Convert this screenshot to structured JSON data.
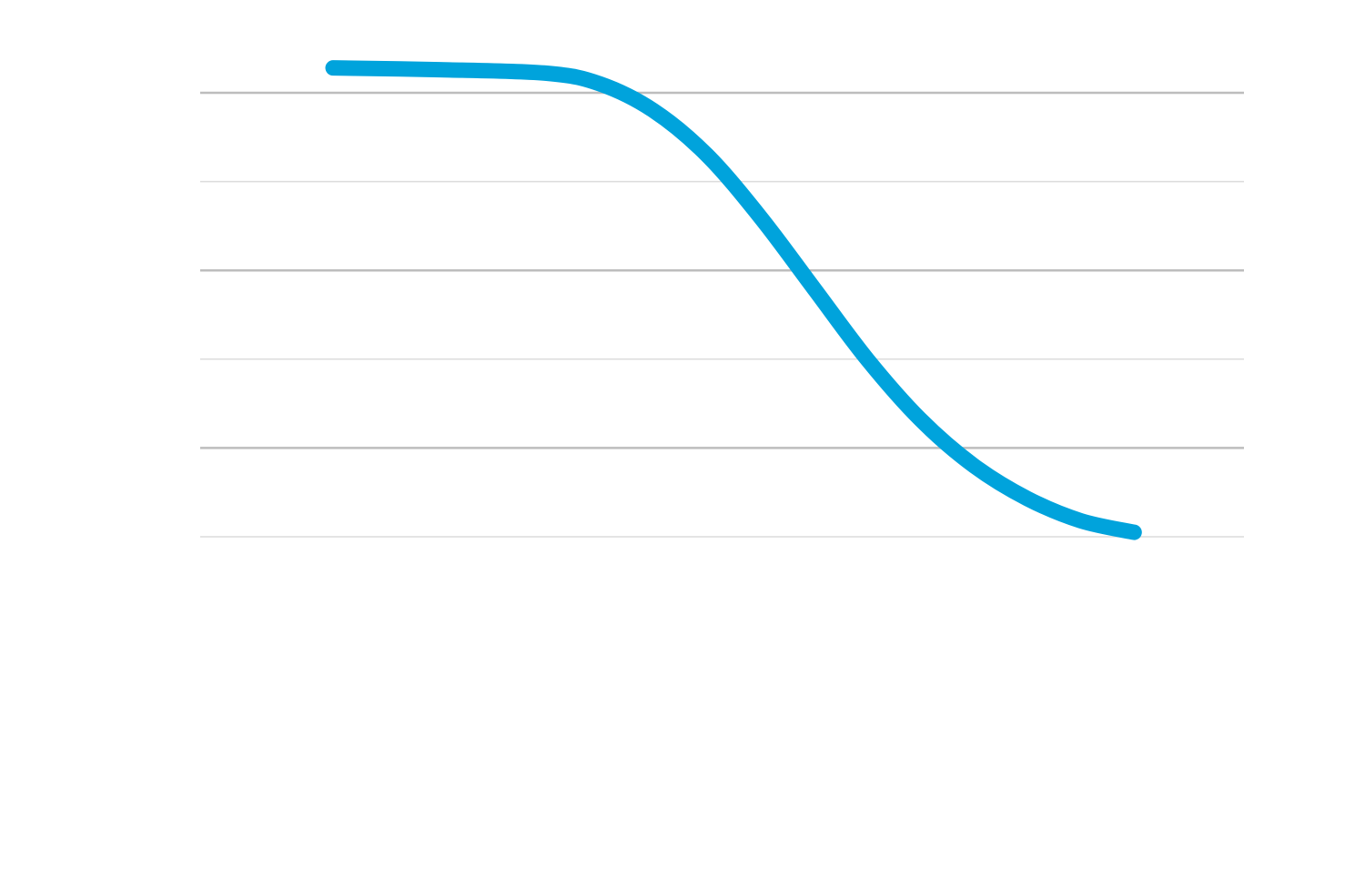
{
  "chart_data": {
    "type": "line",
    "title": "",
    "xlabel": "",
    "ylabel": "",
    "grid": true,
    "legend": "none",
    "ylim": [
      0,
      5
    ],
    "xlim": [
      0,
      8
    ],
    "gridlines": [
      0,
      1,
      2,
      3,
      4,
      5
    ],
    "colors": {
      "line": "#00a3dc",
      "grid_major": "#bdbdbd",
      "grid_minor": "#dcdcdc"
    },
    "series": [
      {
        "points": [
          {
            "x": 0.0,
            "y": 5.28
          },
          {
            "x": 1.0,
            "y": 5.26
          },
          {
            "x": 2.0,
            "y": 5.22
          },
          {
            "x": 2.5,
            "y": 5.1
          },
          {
            "x": 3.0,
            "y": 4.8
          },
          {
            "x": 3.5,
            "y": 4.3
          },
          {
            "x": 4.0,
            "y": 3.6
          },
          {
            "x": 4.5,
            "y": 2.8
          },
          {
            "x": 5.0,
            "y": 2.0
          },
          {
            "x": 5.5,
            "y": 1.32
          },
          {
            "x": 6.0,
            "y": 0.8
          },
          {
            "x": 6.5,
            "y": 0.43
          },
          {
            "x": 7.0,
            "y": 0.18
          },
          {
            "x": 7.5,
            "y": 0.05
          }
        ]
      }
    ]
  }
}
